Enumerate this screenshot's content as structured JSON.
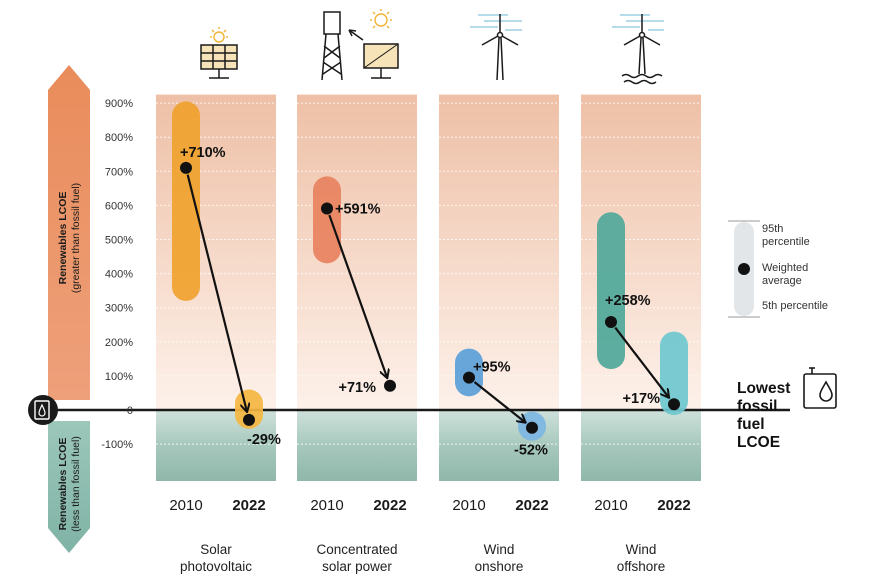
{
  "axis": {
    "top_label_line1": "Renewables LCOE",
    "top_label_line2": "(greater than fossil fuel)",
    "bottom_label_line1": "Renewables LCOE",
    "bottom_label_line2": "(less than fossil fuel)"
  },
  "legend": {
    "p95_line1": "95th",
    "p95_line2": "percentile",
    "avg_line1": "Weighted",
    "avg_line2": "average",
    "p5": "5th percentile"
  },
  "fossil": {
    "line1": "Lowest",
    "line2": "fossil",
    "line3": "fuel",
    "line4": "LCOE"
  },
  "chart_data": {
    "type": "range-dot",
    "ylim": [
      -130,
      925
    ],
    "ytick_values": [
      -100,
      0,
      100,
      200,
      300,
      400,
      500,
      600,
      700,
      800,
      900
    ],
    "ytick_labels": [
      "-100%",
      "0",
      "100%",
      "200%",
      "300%",
      "400%",
      "500%",
      "600%",
      "700%",
      "800%",
      "900%"
    ],
    "x_labels": [
      "2010",
      "2022"
    ],
    "groups": [
      {
        "tech_line1": "Solar",
        "tech_line2": "photovoltaic",
        "color_2010": "#f0a22e",
        "color_2022": "#f5b640",
        "range_2010": [
          320,
          905
        ],
        "avg_2010": 710,
        "label_2010": "+710%",
        "range_2022": [
          -55,
          60
        ],
        "avg_2022": -29,
        "label_2022": "-29%"
      },
      {
        "tech_line1": "Concentrated",
        "tech_line2": "solar power",
        "color_2010": "#e8825e",
        "color_2022": "#f0a07e",
        "range_2010": [
          430,
          685
        ],
        "avg_2010": 591,
        "label_2010": "+591%",
        "range_2022": [
          71,
          71
        ],
        "avg_2022": 71,
        "label_2022": "+71%"
      },
      {
        "tech_line1": "Wind",
        "tech_line2": "onshore",
        "color_2010": "#5b9fd8",
        "color_2022": "#7db6e3",
        "range_2010": [
          40,
          180
        ],
        "avg_2010": 95,
        "label_2010": "+95%",
        "range_2022": [
          -90,
          -5
        ],
        "avg_2022": -52,
        "label_2022": "-52%"
      },
      {
        "tech_line1": "Wind",
        "tech_line2": "offshore",
        "color_2010": "#4fa89a",
        "color_2022": "#6ec8cf",
        "range_2010": [
          120,
          580
        ],
        "avg_2010": 258,
        "label_2010": "+258%",
        "range_2022": [
          -15,
          230
        ],
        "avg_2022": 17,
        "label_2022": "+17%"
      }
    ]
  }
}
